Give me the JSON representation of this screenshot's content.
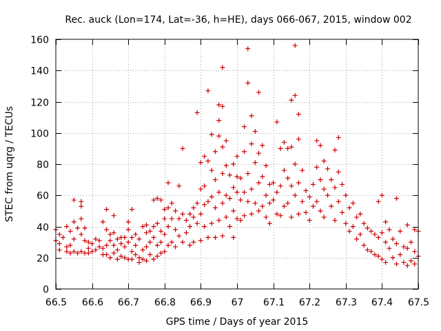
{
  "chart_data": {
    "type": "scatter",
    "title": "Rec. auck (Lon=174, Lat=-36, h=HE), days 066-067, 2015, window 002",
    "xlabel": "GPS time / Days of year 2015",
    "ylabel": "STEC from uqrg / TECUs",
    "xlim": [
      66.5,
      67.5
    ],
    "ylim": [
      0,
      160
    ],
    "xticks": [
      66.5,
      66.6,
      66.7,
      66.8,
      66.9,
      67.0,
      67.1,
      67.2,
      67.3,
      67.4,
      67.5
    ],
    "xtick_labels": [
      "66.5",
      "66.6",
      "66.7",
      "66.8",
      "66.9",
      "67",
      "67.1",
      "67.2",
      "67.3",
      "67.4",
      "67.5"
    ],
    "yticks": [
      0,
      20,
      40,
      60,
      80,
      100,
      120,
      140,
      160
    ],
    "ytick_labels": [
      "0",
      "20",
      "40",
      "60",
      "80",
      "100",
      "120",
      "140",
      "160"
    ],
    "grid": true,
    "marker": "plus",
    "color": "#cc0000",
    "points": [
      [
        66.5,
        31
      ],
      [
        66.5,
        38
      ],
      [
        66.51,
        35
      ],
      [
        66.51,
        29
      ],
      [
        66.51,
        25
      ],
      [
        66.52,
        33
      ],
      [
        66.53,
        24
      ],
      [
        66.53,
        27
      ],
      [
        66.53,
        40
      ],
      [
        66.54,
        37
      ],
      [
        66.54,
        23
      ],
      [
        66.54,
        28
      ],
      [
        66.55,
        43
      ],
      [
        66.55,
        57
      ],
      [
        66.55,
        32
      ],
      [
        66.55,
        24
      ],
      [
        66.56,
        39
      ],
      [
        66.56,
        23
      ],
      [
        66.57,
        53
      ],
      [
        66.57,
        56
      ],
      [
        66.57,
        45
      ],
      [
        66.57,
        35
      ],
      [
        66.57,
        24
      ],
      [
        66.58,
        39
      ],
      [
        66.58,
        31
      ],
      [
        66.58,
        23
      ],
      [
        66.59,
        26
      ],
      [
        66.59,
        30
      ],
      [
        66.59,
        23
      ],
      [
        66.6,
        29
      ],
      [
        66.6,
        24
      ],
      [
        66.61,
        32
      ],
      [
        66.61,
        25
      ],
      [
        66.62,
        27
      ],
      [
        66.62,
        31
      ],
      [
        66.63,
        22
      ],
      [
        66.63,
        26
      ],
      [
        66.63,
        43
      ],
      [
        66.64,
        51
      ],
      [
        66.64,
        38
      ],
      [
        66.64,
        28
      ],
      [
        66.64,
        22
      ],
      [
        66.65,
        35
      ],
      [
        66.65,
        31
      ],
      [
        66.65,
        20
      ],
      [
        66.66,
        47
      ],
      [
        66.66,
        36
      ],
      [
        66.66,
        28
      ],
      [
        66.66,
        23
      ],
      [
        66.67,
        32
      ],
      [
        66.67,
        25
      ],
      [
        66.67,
        19
      ],
      [
        66.68,
        33
      ],
      [
        66.68,
        29
      ],
      [
        66.68,
        21
      ],
      [
        66.69,
        33
      ],
      [
        66.69,
        27
      ],
      [
        66.69,
        20
      ],
      [
        66.7,
        43
      ],
      [
        66.7,
        38
      ],
      [
        66.7,
        30
      ],
      [
        66.7,
        19
      ],
      [
        66.71,
        51
      ],
      [
        66.71,
        33
      ],
      [
        66.71,
        24
      ],
      [
        66.71,
        19
      ],
      [
        66.72,
        35
      ],
      [
        66.72,
        28
      ],
      [
        66.72,
        22
      ],
      [
        66.73,
        32
      ],
      [
        66.73,
        20
      ],
      [
        66.73,
        17
      ],
      [
        66.74,
        40
      ],
      [
        66.74,
        25
      ],
      [
        66.74,
        19
      ],
      [
        66.75,
        41
      ],
      [
        66.75,
        36
      ],
      [
        66.75,
        27
      ],
      [
        66.75,
        18
      ],
      [
        66.76,
        37
      ],
      [
        66.76,
        30
      ],
      [
        66.76,
        22
      ],
      [
        66.77,
        57
      ],
      [
        66.77,
        40
      ],
      [
        66.77,
        33
      ],
      [
        66.77,
        19
      ],
      [
        66.78,
        58
      ],
      [
        66.78,
        42
      ],
      [
        66.78,
        28
      ],
      [
        66.78,
        21
      ],
      [
        66.79,
        57
      ],
      [
        66.79,
        37
      ],
      [
        66.79,
        30
      ],
      [
        66.79,
        23
      ],
      [
        66.8,
        51
      ],
      [
        66.8,
        45
      ],
      [
        66.8,
        35
      ],
      [
        66.8,
        24
      ],
      [
        66.81,
        68
      ],
      [
        66.81,
        52
      ],
      [
        66.81,
        40
      ],
      [
        66.81,
        28
      ],
      [
        66.82,
        55
      ],
      [
        66.82,
        45
      ],
      [
        66.82,
        30
      ],
      [
        66.83,
        50
      ],
      [
        66.83,
        38
      ],
      [
        66.83,
        27
      ],
      [
        66.84,
        66
      ],
      [
        66.84,
        45
      ],
      [
        66.84,
        34
      ],
      [
        66.85,
        90
      ],
      [
        66.85,
        48
      ],
      [
        66.85,
        30
      ],
      [
        66.86,
        44
      ],
      [
        66.86,
        36
      ],
      [
        66.87,
        48
      ],
      [
        66.87,
        40
      ],
      [
        66.87,
        28
      ],
      [
        66.88,
        52
      ],
      [
        66.88,
        46
      ],
      [
        66.88,
        30
      ],
      [
        66.89,
        113
      ],
      [
        66.89,
        55
      ],
      [
        66.89,
        42
      ],
      [
        66.9,
        81
      ],
      [
        66.9,
        64
      ],
      [
        66.9,
        48
      ],
      [
        66.9,
        31
      ],
      [
        66.91,
        85
      ],
      [
        66.91,
        66
      ],
      [
        66.91,
        54
      ],
      [
        66.91,
        40
      ],
      [
        66.92,
        127
      ],
      [
        66.92,
        82
      ],
      [
        66.92,
        56
      ],
      [
        66.92,
        33
      ],
      [
        66.93,
        99
      ],
      [
        66.93,
        76
      ],
      [
        66.93,
        59
      ],
      [
        66.93,
        42
      ],
      [
        66.94,
        88
      ],
      [
        66.94,
        70
      ],
      [
        66.94,
        52
      ],
      [
        66.94,
        33
      ],
      [
        66.95,
        118
      ],
      [
        66.95,
        108
      ],
      [
        66.95,
        98
      ],
      [
        66.95,
        62
      ],
      [
        66.95,
        44
      ],
      [
        66.96,
        142
      ],
      [
        66.96,
        117
      ],
      [
        66.96,
        91
      ],
      [
        66.96,
        74
      ],
      [
        66.96,
        55
      ],
      [
        66.96,
        34
      ],
      [
        66.97,
        95
      ],
      [
        66.97,
        79
      ],
      [
        66.97,
        60
      ],
      [
        66.97,
        46
      ],
      [
        66.98,
        73
      ],
      [
        66.98,
        58
      ],
      [
        66.98,
        40
      ],
      [
        66.99,
        80
      ],
      [
        66.99,
        65
      ],
      [
        66.99,
        50
      ],
      [
        66.99,
        33
      ],
      [
        67.0,
        85
      ],
      [
        67.0,
        72
      ],
      [
        67.0,
        62
      ],
      [
        67.0,
        45
      ],
      [
        67.01,
        71
      ],
      [
        67.01,
        57
      ],
      [
        67.01,
        44
      ],
      [
        67.02,
        104
      ],
      [
        67.02,
        88
      ],
      [
        67.02,
        62
      ],
      [
        67.02,
        47
      ],
      [
        67.03,
        154
      ],
      [
        67.03,
        132
      ],
      [
        67.03,
        74
      ],
      [
        67.03,
        56
      ],
      [
        67.04,
        111
      ],
      [
        67.04,
        93
      ],
      [
        67.04,
        64
      ],
      [
        67.04,
        48
      ],
      [
        67.05,
        101
      ],
      [
        67.05,
        81
      ],
      [
        67.05,
        55
      ],
      [
        67.06,
        126
      ],
      [
        67.06,
        87
      ],
      [
        67.06,
        68
      ],
      [
        67.06,
        50
      ],
      [
        67.07,
        92
      ],
      [
        67.07,
        72
      ],
      [
        67.07,
        53
      ],
      [
        67.08,
        79
      ],
      [
        67.08,
        60
      ],
      [
        67.08,
        46
      ],
      [
        67.09,
        67
      ],
      [
        67.09,
        55
      ],
      [
        67.09,
        42
      ],
      [
        67.1,
        68
      ],
      [
        67.1,
        57
      ],
      [
        67.11,
        107
      ],
      [
        67.11,
        62
      ],
      [
        67.11,
        48
      ],
      [
        67.12,
        90
      ],
      [
        67.12,
        66
      ],
      [
        67.12,
        47
      ],
      [
        67.13,
        94
      ],
      [
        67.13,
        76
      ],
      [
        67.13,
        53
      ],
      [
        67.14,
        90
      ],
      [
        67.14,
        71
      ],
      [
        67.14,
        55
      ],
      [
        67.15,
        121
      ],
      [
        67.15,
        91
      ],
      [
        67.15,
        66
      ],
      [
        67.15,
        46
      ],
      [
        67.16,
        156
      ],
      [
        67.16,
        124
      ],
      [
        67.16,
        80
      ],
      [
        67.16,
        60
      ],
      [
        67.17,
        112
      ],
      [
        67.17,
        96
      ],
      [
        67.17,
        68
      ],
      [
        67.17,
        48
      ],
      [
        67.18,
        76
      ],
      [
        67.18,
        56
      ],
      [
        67.19,
        63
      ],
      [
        67.19,
        49
      ],
      [
        67.2,
        59
      ],
      [
        67.2,
        44
      ],
      [
        67.21,
        67
      ],
      [
        67.21,
        53
      ],
      [
        67.22,
        95
      ],
      [
        67.22,
        78
      ],
      [
        67.22,
        56
      ],
      [
        67.23,
        92
      ],
      [
        67.23,
        70
      ],
      [
        67.23,
        50
      ],
      [
        67.24,
        82
      ],
      [
        67.24,
        64
      ],
      [
        67.24,
        46
      ],
      [
        67.25,
        77
      ],
      [
        67.25,
        60
      ],
      [
        67.26,
        70
      ],
      [
        67.26,
        53
      ],
      [
        67.27,
        89
      ],
      [
        67.27,
        65
      ],
      [
        67.27,
        44
      ],
      [
        67.28,
        97
      ],
      [
        67.28,
        75
      ],
      [
        67.28,
        56
      ],
      [
        67.29,
        67
      ],
      [
        67.29,
        49
      ],
      [
        67.3,
        60
      ],
      [
        67.3,
        42
      ],
      [
        67.31,
        52
      ],
      [
        67.31,
        37
      ],
      [
        67.32,
        55
      ],
      [
        67.32,
        40
      ],
      [
        67.33,
        46
      ],
      [
        67.33,
        32
      ],
      [
        67.34,
        48
      ],
      [
        67.34,
        35
      ],
      [
        67.35,
        42
      ],
      [
        67.35,
        28
      ],
      [
        67.36,
        39
      ],
      [
        67.36,
        25
      ],
      [
        67.37,
        37
      ],
      [
        67.37,
        24
      ],
      [
        67.38,
        35
      ],
      [
        67.38,
        22
      ],
      [
        67.39,
        56
      ],
      [
        67.39,
        33
      ],
      [
        67.39,
        21
      ],
      [
        67.4,
        60
      ],
      [
        67.4,
        36
      ],
      [
        67.4,
        19
      ],
      [
        67.41,
        43
      ],
      [
        67.41,
        30
      ],
      [
        67.41,
        17
      ],
      [
        67.42,
        38
      ],
      [
        67.42,
        26
      ],
      [
        67.43,
        32
      ],
      [
        67.43,
        20
      ],
      [
        67.44,
        58
      ],
      [
        67.44,
        29
      ],
      [
        67.44,
        16
      ],
      [
        67.45,
        37
      ],
      [
        67.45,
        22
      ],
      [
        67.46,
        27
      ],
      [
        67.46,
        17
      ],
      [
        67.47,
        41
      ],
      [
        67.47,
        26
      ],
      [
        67.47,
        15
      ],
      [
        67.48,
        30
      ],
      [
        67.48,
        18
      ],
      [
        67.49,
        38
      ],
      [
        67.49,
        24
      ],
      [
        67.49,
        16
      ],
      [
        67.5,
        37
      ],
      [
        67.5,
        21
      ]
    ]
  }
}
